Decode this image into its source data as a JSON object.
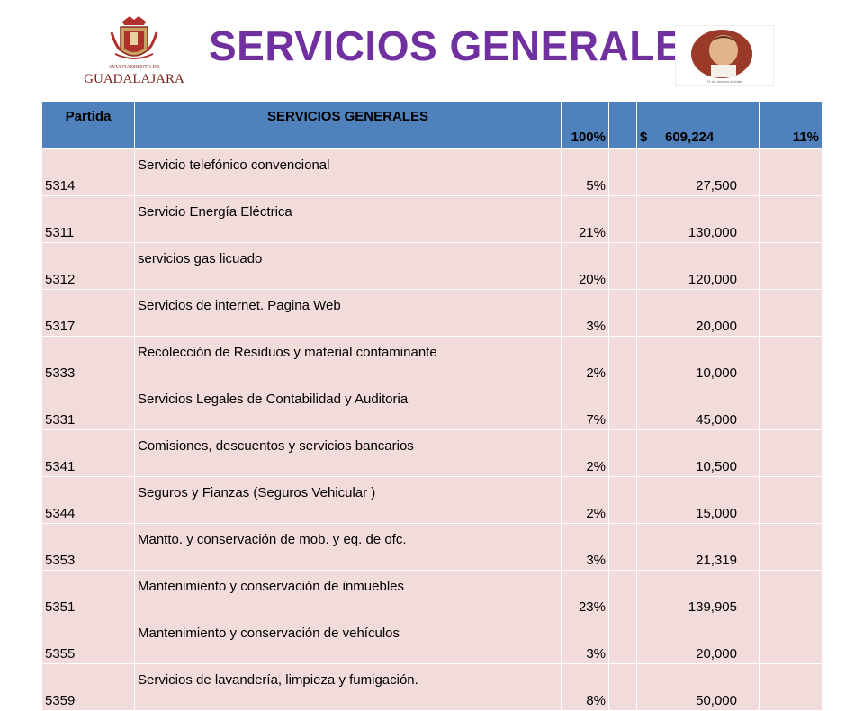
{
  "header": {
    "title": "SERVICIOS GENERALES",
    "logo_text_top": "AYUNTAMIENTO DE",
    "logo_text_main": "GUADALAJARA",
    "portrait_caption": "Fr. de Antonio Alcalde"
  },
  "colors": {
    "title": "#7030a0",
    "header_bg": "#4f81bd",
    "row_bg": "#f2dcdb"
  },
  "table": {
    "header": {
      "partida": "Partida",
      "concept": "SERVICIOS GENERALES",
      "percent": "100%",
      "currency": "$",
      "amount": "609,224",
      "share": "11%"
    },
    "rows": [
      {
        "code": "5314",
        "desc": "Servicio telefónico convencional",
        "pct": "5%",
        "amount": "27,500"
      },
      {
        "code": "5311",
        "desc": "Servicio Energía Eléctrica",
        "pct": "21%",
        "amount": "130,000"
      },
      {
        "code": "5312",
        "desc": "servicios gas licuado",
        "pct": "20%",
        "amount": "120,000"
      },
      {
        "code": "5317",
        "desc": "Servicios de internet. Pagina Web",
        "pct": "3%",
        "amount": "20,000"
      },
      {
        "code": "5333",
        "desc": "Recolección de Residuos y material contaminante",
        "pct": "2%",
        "amount": "10,000"
      },
      {
        "code": "5331",
        "desc": "Servicios Legales de Contabilidad y Auditoria",
        "pct": "7%",
        "amount": "45,000"
      },
      {
        "code": "5341",
        "desc": "Comisiones, descuentos y  servicios bancarios",
        "pct": "2%",
        "amount": "10,500"
      },
      {
        "code": "5344",
        "desc": "Seguros y Fianzas (Seguros Vehicular )",
        "pct": "2%",
        "amount": "15,000"
      },
      {
        "code": "5353",
        "desc": "Mantto.  y conservación de mob. y eq. de ofc.",
        "pct": "3%",
        "amount": "21,319"
      },
      {
        "code": "5351",
        "desc": "Mantenimiento y conservación de inmuebles",
        "pct": "23%",
        "amount": "139,905"
      },
      {
        "code": "5355",
        "desc": "Mantenimiento y conservación de vehículos",
        "pct": "3%",
        "amount": "20,000"
      },
      {
        "code": "5359",
        "desc": "Servicios de lavandería, limpieza y fumigación.",
        "pct": "8%",
        "amount": "50,000"
      }
    ]
  }
}
